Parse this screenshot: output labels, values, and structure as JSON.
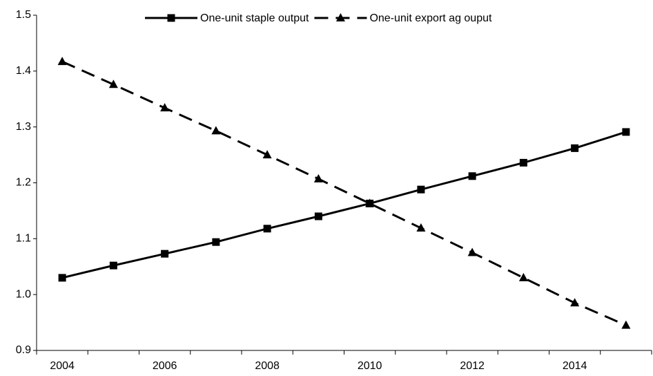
{
  "chart_data": {
    "type": "line",
    "categories": [
      "2004",
      null,
      "2006",
      null,
      "2008",
      null,
      "2010",
      null,
      "2012",
      null,
      "2014",
      null
    ],
    "series": [
      {
        "name": "One-unit staple output",
        "color": "#000000",
        "marker": "square",
        "dash": false,
        "values": [
          1.03,
          1.052,
          1.073,
          1.094,
          1.118,
          1.14,
          1.163,
          1.188,
          1.212,
          1.236,
          1.262,
          1.291
        ]
      },
      {
        "name": "One-unit export ag ouput",
        "color": "#000000",
        "marker": "triangle",
        "dash": true,
        "values": [
          1.417,
          1.376,
          1.334,
          1.293,
          1.25,
          1.207,
          1.163,
          1.119,
          1.075,
          1.03,
          0.985,
          0.945
        ]
      }
    ],
    "ylim": [
      0.9,
      1.5
    ],
    "yticks": [
      0.9,
      {
        "value": 1.0,
        "label": "1.0"
      },
      1.1,
      1.2,
      1.3,
      1.4,
      1.5
    ],
    "grid": false,
    "legend": "top"
  }
}
